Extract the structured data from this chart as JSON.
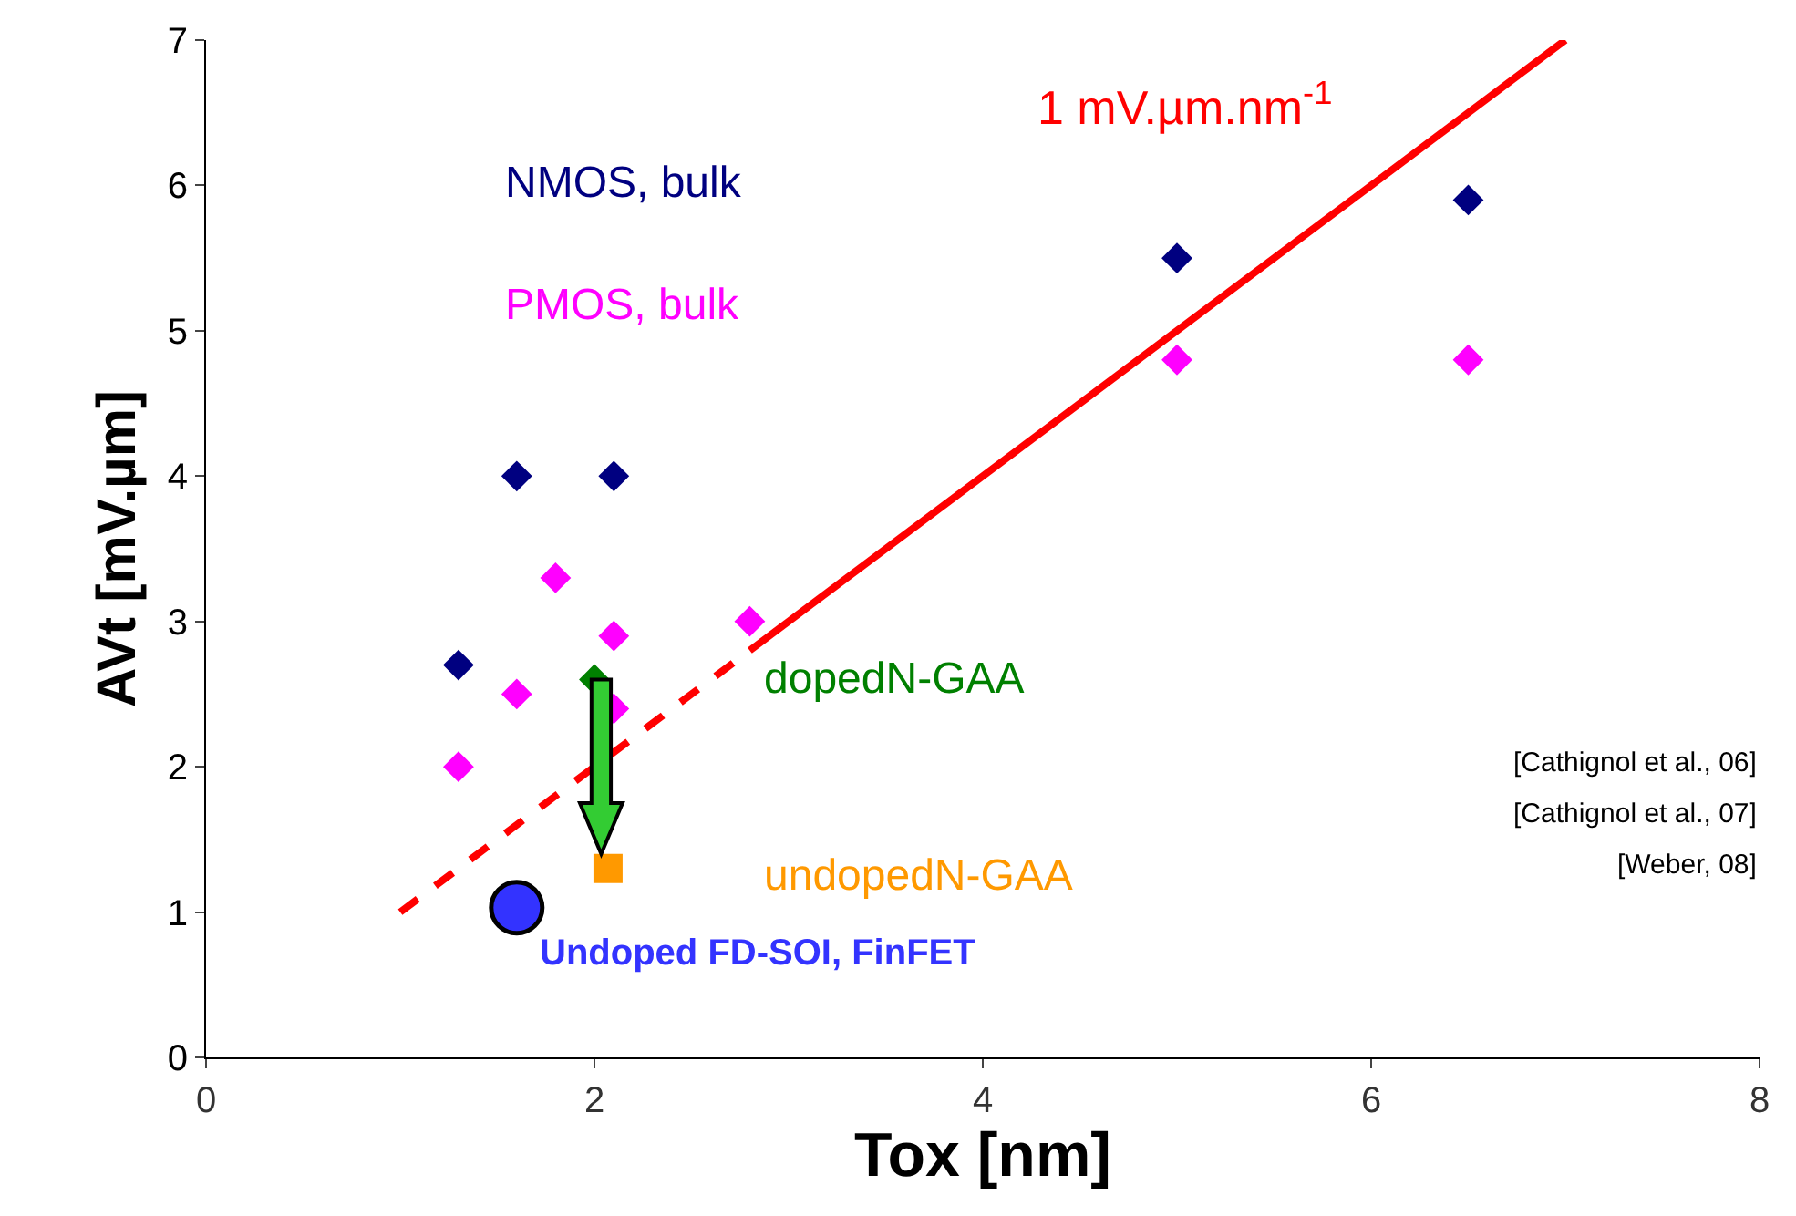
{
  "chart_data": {
    "type": "scatter",
    "xlabel": "Tox [nm]",
    "ylabel": "AVt [mV.µm]",
    "xlim": [
      0,
      8
    ],
    "xticks": [
      0,
      2,
      4,
      6,
      8
    ],
    "ylim": [
      0,
      7
    ],
    "yticks": [
      0,
      1,
      2,
      3,
      4,
      5,
      6,
      7
    ],
    "legend": false,
    "series": [
      {
        "name": "NMOS, bulk",
        "color": "#000080",
        "marker": "diamond",
        "x": [
          1.3,
          1.6,
          2.1,
          5.0,
          6.5
        ],
        "values": [
          2.7,
          4.0,
          4.0,
          5.5,
          5.9
        ]
      },
      {
        "name": "PMOS, bulk",
        "color": "#ff00ff",
        "marker": "diamond",
        "x": [
          1.3,
          1.6,
          1.8,
          2.1,
          2.1,
          2.8,
          5.0,
          6.5
        ],
        "values": [
          2.0,
          2.5,
          3.3,
          2.9,
          2.4,
          3.0,
          4.8,
          4.8
        ]
      },
      {
        "name": "dopedN-GAA",
        "color": "#008000",
        "marker": "diamond",
        "x": [
          2.0
        ],
        "values": [
          2.6
        ]
      },
      {
        "name": "undopedN-GAA",
        "color": "#ff9900",
        "marker": "square",
        "x": [
          2.07
        ],
        "values": [
          1.3
        ]
      },
      {
        "name": "Undoped FD-SOI, FinFET",
        "color": "#3333ff",
        "marker": "circle",
        "x": [
          1.6
        ],
        "values": [
          1.03
        ]
      },
      {
        "type": "line",
        "color": "#ff0000",
        "line_style": "dashed",
        "marker": "none",
        "x": [
          1.0,
          2.8
        ],
        "values": [
          1.0,
          2.8
        ]
      },
      {
        "type": "line",
        "color": "#ff0000",
        "line_style": "solid",
        "marker": "none",
        "x": [
          2.8,
          7.0
        ],
        "values": [
          2.8,
          7.0
        ]
      }
    ],
    "annotations": [
      "1 mV.µm.nm$^{-1}$",
      "[Cathignol et al., 06]",
      "[Cathignol et al., 07]",
      "[Weber, 08]"
    ]
  }
}
